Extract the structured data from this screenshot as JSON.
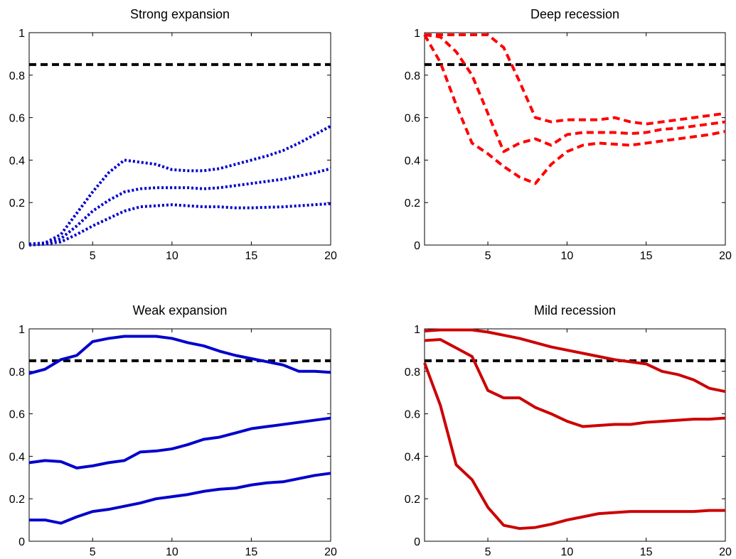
{
  "chart_data": [
    {
      "type": "line",
      "title": "Strong expansion",
      "xlim": [
        1,
        20
      ],
      "ylim": [
        0,
        1
      ],
      "xticks": [
        5,
        10,
        15,
        20
      ],
      "yticks": [
        0,
        0.2,
        0.4,
        0.6,
        0.8,
        1
      ],
      "ytick_labels": [
        "0",
        "0.2",
        "0.4",
        "0.6",
        "0.8",
        "1"
      ],
      "grid": false,
      "line_style": "dotted",
      "color": "#0000cc",
      "reference_line": {
        "y": 0.85,
        "color": "#000000",
        "style": "dashed"
      },
      "x": [
        1,
        2,
        3,
        4,
        5,
        6,
        7,
        8,
        9,
        10,
        11,
        12,
        13,
        14,
        15,
        16,
        17,
        18,
        19,
        20
      ],
      "series": [
        {
          "values": [
            0.005,
            0.01,
            0.05,
            0.15,
            0.25,
            0.34,
            0.4,
            0.39,
            0.38,
            0.355,
            0.35,
            0.35,
            0.36,
            0.38,
            0.4,
            0.42,
            0.445,
            0.48,
            0.52,
            0.56
          ]
        },
        {
          "values": [
            0.0,
            0.005,
            0.03,
            0.09,
            0.16,
            0.21,
            0.25,
            0.265,
            0.27,
            0.27,
            0.27,
            0.265,
            0.27,
            0.28,
            0.29,
            0.3,
            0.31,
            0.325,
            0.34,
            0.36
          ]
        },
        {
          "values": [
            0.0,
            0.005,
            0.015,
            0.05,
            0.09,
            0.125,
            0.16,
            0.18,
            0.185,
            0.19,
            0.185,
            0.18,
            0.18,
            0.175,
            0.175,
            0.178,
            0.18,
            0.185,
            0.19,
            0.195
          ]
        }
      ]
    },
    {
      "type": "line",
      "title": "Deep recession",
      "xlim": [
        1,
        20
      ],
      "ylim": [
        0,
        1
      ],
      "xticks": [
        5,
        10,
        15,
        20
      ],
      "yticks": [
        0,
        0.2,
        0.4,
        0.6,
        0.8,
        1
      ],
      "ytick_labels": [
        "0",
        "0.2",
        "0.4",
        "0.6",
        "0.8",
        "1"
      ],
      "grid": false,
      "line_style": "dashed",
      "color": "#ff0000",
      "reference_line": {
        "y": 0.85,
        "color": "#000000",
        "style": "dashed"
      },
      "x": [
        1,
        2,
        3,
        4,
        5,
        6,
        7,
        8,
        9,
        10,
        11,
        12,
        13,
        14,
        15,
        16,
        17,
        18,
        19,
        20
      ],
      "series": [
        {
          "values": [
            0.99,
            0.99,
            0.99,
            0.99,
            0.99,
            0.93,
            0.77,
            0.6,
            0.58,
            0.59,
            0.59,
            0.59,
            0.6,
            0.58,
            0.57,
            0.58,
            0.59,
            0.6,
            0.61,
            0.62
          ]
        },
        {
          "values": [
            0.99,
            0.98,
            0.91,
            0.8,
            0.62,
            0.44,
            0.48,
            0.5,
            0.47,
            0.52,
            0.53,
            0.53,
            0.53,
            0.525,
            0.53,
            0.545,
            0.55,
            0.56,
            0.57,
            0.58
          ]
        },
        {
          "values": [
            0.99,
            0.86,
            0.66,
            0.48,
            0.43,
            0.37,
            0.32,
            0.29,
            0.38,
            0.44,
            0.47,
            0.48,
            0.475,
            0.47,
            0.48,
            0.49,
            0.5,
            0.51,
            0.52,
            0.535
          ]
        }
      ]
    },
    {
      "type": "line",
      "title": "Weak expansion",
      "xlim": [
        1,
        20
      ],
      "ylim": [
        0,
        1
      ],
      "xticks": [
        5,
        10,
        15,
        20
      ],
      "yticks": [
        0,
        0.2,
        0.4,
        0.6,
        0.8,
        1
      ],
      "ytick_labels": [
        "0",
        "0.2",
        "0.4",
        "0.6",
        "0.8",
        "1"
      ],
      "grid": false,
      "line_style": "solid",
      "color": "#0000cc",
      "reference_line": {
        "y": 0.85,
        "color": "#000000",
        "style": "dashed"
      },
      "x": [
        1,
        2,
        3,
        4,
        5,
        6,
        7,
        8,
        9,
        10,
        11,
        12,
        13,
        14,
        15,
        16,
        17,
        18,
        19,
        20
      ],
      "series": [
        {
          "values": [
            0.79,
            0.81,
            0.855,
            0.875,
            0.94,
            0.955,
            0.965,
            0.965,
            0.965,
            0.955,
            0.935,
            0.92,
            0.895,
            0.875,
            0.86,
            0.845,
            0.83,
            0.8,
            0.8,
            0.795
          ]
        },
        {
          "values": [
            0.37,
            0.38,
            0.375,
            0.345,
            0.355,
            0.37,
            0.38,
            0.42,
            0.425,
            0.435,
            0.455,
            0.48,
            0.49,
            0.51,
            0.53,
            0.54,
            0.55,
            0.56,
            0.57,
            0.58
          ]
        },
        {
          "values": [
            0.1,
            0.1,
            0.085,
            0.115,
            0.14,
            0.15,
            0.165,
            0.18,
            0.2,
            0.21,
            0.22,
            0.235,
            0.245,
            0.25,
            0.265,
            0.275,
            0.28,
            0.295,
            0.31,
            0.32
          ]
        }
      ]
    },
    {
      "type": "line",
      "title": "Mild recession",
      "xlim": [
        1,
        20
      ],
      "ylim": [
        0,
        1
      ],
      "xticks": [
        5,
        10,
        15,
        20
      ],
      "yticks": [
        0,
        0.2,
        0.4,
        0.6,
        0.8,
        1
      ],
      "ytick_labels": [
        "0",
        "0.2",
        "0.4",
        "0.6",
        "0.8",
        "1"
      ],
      "grid": false,
      "line_style": "solid",
      "color": "#cc0000",
      "reference_line": {
        "y": 0.85,
        "color": "#000000",
        "style": "dashed"
      },
      "x": [
        1,
        2,
        3,
        4,
        5,
        6,
        7,
        8,
        9,
        10,
        11,
        12,
        13,
        14,
        15,
        16,
        17,
        18,
        19,
        20
      ],
      "series": [
        {
          "values": [
            0.99,
            0.995,
            0.995,
            0.995,
            0.985,
            0.97,
            0.955,
            0.935,
            0.915,
            0.9,
            0.885,
            0.87,
            0.855,
            0.845,
            0.835,
            0.8,
            0.785,
            0.76,
            0.72,
            0.705
          ]
        },
        {
          "values": [
            0.945,
            0.95,
            0.91,
            0.87,
            0.71,
            0.675,
            0.675,
            0.63,
            0.6,
            0.565,
            0.54,
            0.545,
            0.55,
            0.55,
            0.56,
            0.565,
            0.57,
            0.575,
            0.575,
            0.58
          ]
        },
        {
          "values": [
            0.84,
            0.64,
            0.36,
            0.29,
            0.16,
            0.075,
            0.06,
            0.065,
            0.08,
            0.1,
            0.115,
            0.13,
            0.135,
            0.14,
            0.14,
            0.14,
            0.14,
            0.14,
            0.145,
            0.145
          ]
        }
      ]
    }
  ]
}
